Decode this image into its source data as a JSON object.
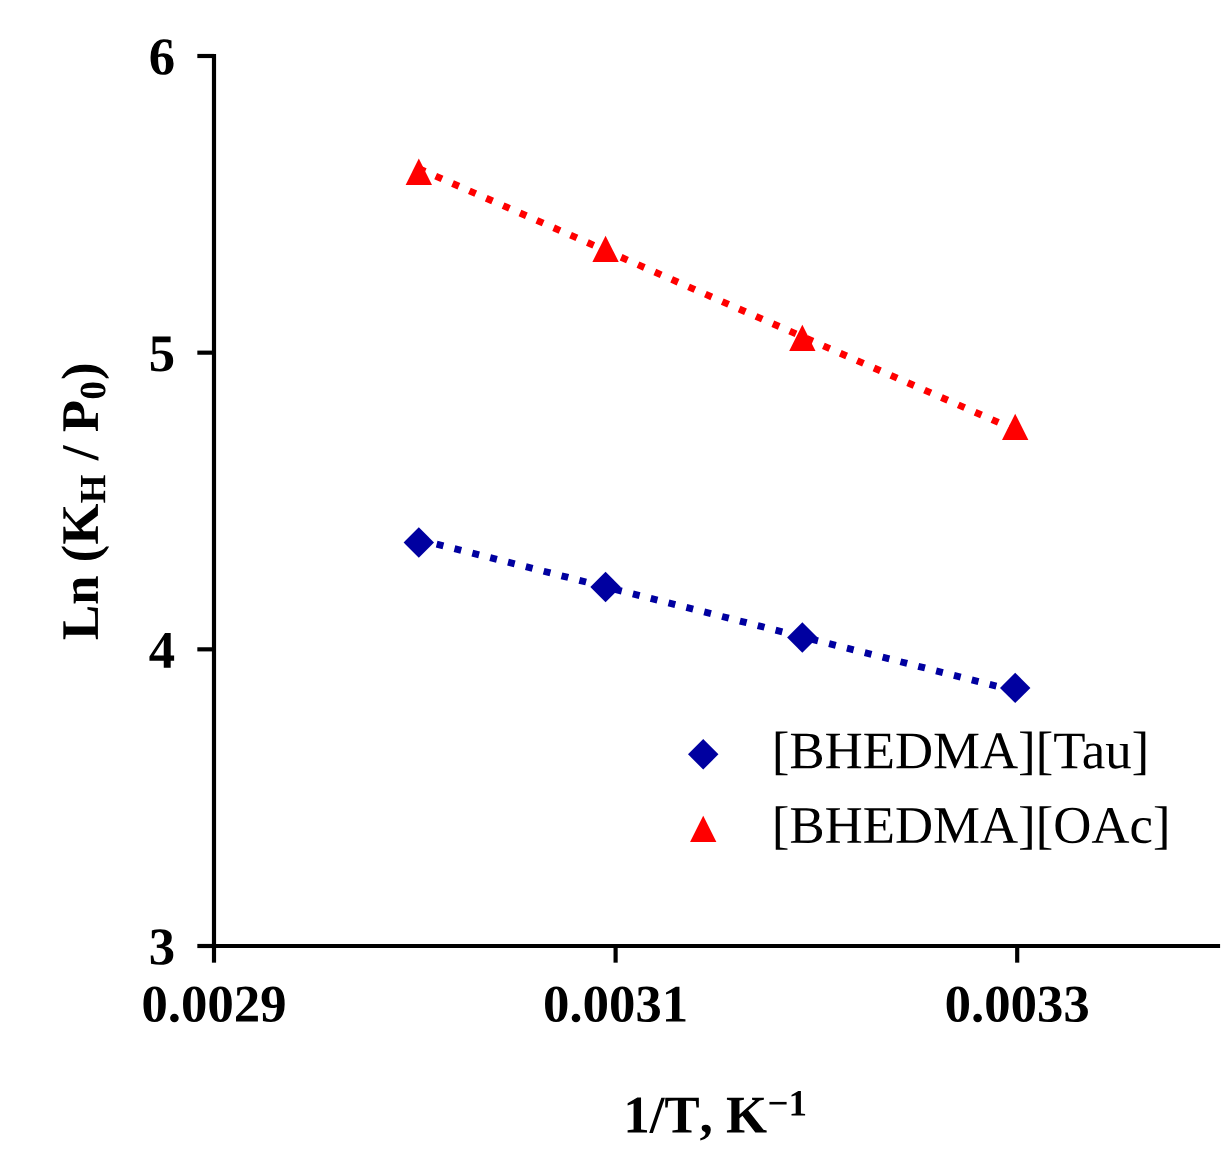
{
  "chart_data": {
    "type": "scatter",
    "xlabel": "1/T, K$^{−1}$",
    "ylabel": "Ln (K$_{H}$ / P$_{0}$)",
    "xlim": [
      0.0029,
      0.0034
    ],
    "xticks": [
      0.0029,
      0.0031,
      0.0033
    ],
    "ylim": [
      3,
      6
    ],
    "yticks": [
      3,
      4,
      5,
      6
    ],
    "grid": false,
    "legend": "bottom right",
    "series": [
      {
        "name": "[BHEDMA][Tau]",
        "marker": "diamond",
        "color": "#0000a0",
        "x": [
          0.003002,
          0.003095,
          0.003193,
          0.003299
        ],
        "values": [
          4.36,
          4.21,
          4.04,
          3.87
        ]
      },
      {
        "name": "[BHEDMA][OAc]",
        "marker": "triangle",
        "color": "#ff0000",
        "x": [
          0.003002,
          0.003095,
          0.003193,
          0.003299
        ],
        "values": [
          5.61,
          5.35,
          5.05,
          4.75
        ]
      },
      {
        "type": "line",
        "line_style": "dotted",
        "marker": "none",
        "color": "#0000a0",
        "x": [
          0.003002,
          0.003299
        ],
        "values": [
          4.37,
          3.86
        ]
      },
      {
        "type": "line",
        "line_style": "dotted",
        "marker": "none",
        "color": "#ff0000",
        "x": [
          0.003002,
          0.003299
        ],
        "values": [
          5.62,
          4.74
        ]
      }
    ]
  }
}
